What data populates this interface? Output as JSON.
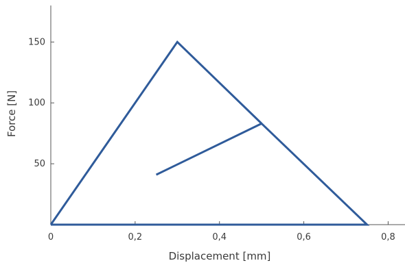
{
  "chart_data": {
    "type": "line",
    "title": "",
    "xlabel": "Displacement [mm]",
    "ylabel": "Force [N]",
    "xlim": [
      0,
      0.84
    ],
    "ylim": [
      0,
      180
    ],
    "x_ticks": [
      0,
      0.2,
      0.4,
      0.6,
      0.8
    ],
    "x_tick_labels": [
      "0",
      "0,2",
      "0,4",
      "0,6",
      "0,8"
    ],
    "y_ticks": [
      50,
      100,
      150
    ],
    "y_tick_labels": [
      "50",
      "100",
      "150"
    ],
    "grid": false,
    "legend": "none",
    "line_color": "#2f5b9a",
    "series": [
      {
        "x": [
          0,
          0.3,
          0.5,
          0.75,
          0
        ],
        "y": [
          0,
          150,
          83,
          0,
          0
        ]
      },
      {
        "x": [
          0.25,
          0.5
        ],
        "y": [
          41,
          83
        ]
      }
    ]
  }
}
